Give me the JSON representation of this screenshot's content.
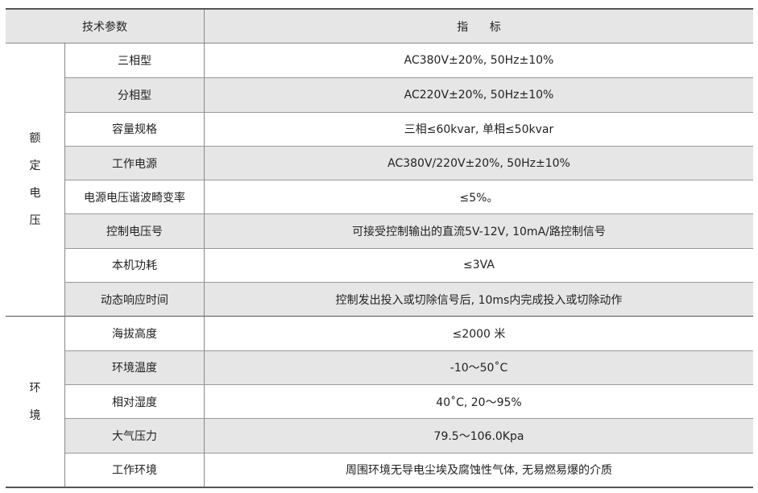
{
  "header": {
    "param": "技术参数",
    "indicator": "指 标"
  },
  "groups": [
    {
      "label_chars": [
        "额",
        "定",
        "电",
        "压"
      ],
      "rows": [
        {
          "name": "三相型",
          "value": "AC380V±20%, 50Hz±10%"
        },
        {
          "name": "分相型",
          "value": "AC220V±20%, 50Hz±10%"
        },
        {
          "name": "容量规格",
          "value": "三相≤60kvar, 单相≤50kvar"
        },
        {
          "name": "工作电源",
          "value": "AC380V/220V±20%, 50Hz±10%"
        },
        {
          "name": "电源电压谐波畸变率",
          "value": "≤5%。"
        },
        {
          "name": "控制电压号",
          "value": "可接受控制输出的直流5V-12V, 10mA/路控制信号"
        },
        {
          "name": "本机功耗",
          "value": "≤3VA"
        },
        {
          "name": "动态响应时间",
          "value": "控制发出投入或切除信号后, 10ms内完成投入或切除动作"
        }
      ]
    },
    {
      "label_chars": [
        "环",
        "境"
      ],
      "rows": [
        {
          "name": "海拔高度",
          "value": "≤2000 米"
        },
        {
          "name": "环境温度",
          "value": "-10～50˚C"
        },
        {
          "name": "相对湿度",
          "value": "40˚C, 20～95%"
        },
        {
          "name": "大气压力",
          "value": "79.5～106.0Kpa"
        },
        {
          "name": "工作环境",
          "value": "周围环境无导电尘埃及腐蚀性气体, 无易燃易爆的介质"
        }
      ]
    }
  ],
  "colors": {
    "header_bg": "#e6e6e7",
    "alt_row_bg": "#e6e6e7",
    "rule": "#555555"
  }
}
